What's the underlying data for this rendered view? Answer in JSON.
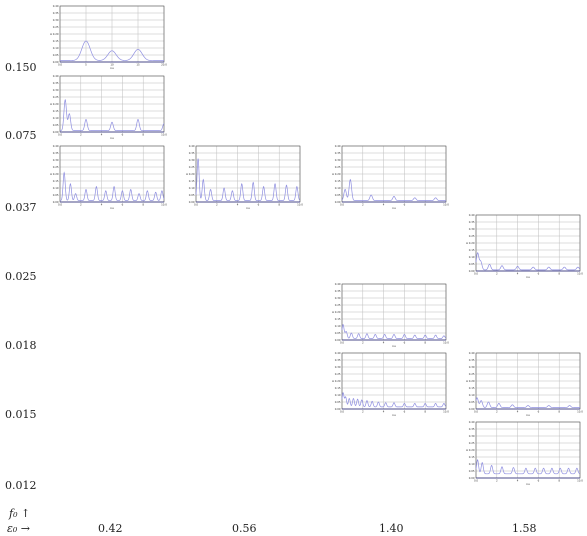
{
  "axes": {
    "y_axis_label": "f₀ ↑",
    "x_axis_label": "ε₀ →",
    "row_labels": [
      "0.150",
      "0.075",
      "0.037",
      "0.025",
      "0.018",
      "0.015",
      "0.012"
    ],
    "col_labels": [
      "0.42",
      "0.56",
      "1.40",
      "1.58"
    ]
  },
  "chart_data": {
    "type": "line",
    "layout": "small-multiples grid",
    "line_color": "#8f8fe0",
    "panel_axes": {
      "x_label": "nu",
      "y_label": "A",
      "ylim": [
        0,
        0.4
      ],
      "y_ticks": [
        "0.00",
        "0.05",
        "0.10",
        "0.15",
        "0.20",
        "0.25",
        "0.30",
        "0.35",
        "0.40"
      ]
    },
    "panels": [
      {
        "row": 0,
        "col": 0,
        "f0": "0.150",
        "eps0": "0.42",
        "xlim": [
          0,
          20
        ],
        "x_ticks": [
          "0.0",
          "5",
          "10",
          "15",
          "20.0"
        ],
        "peaks": [
          [
            5,
            0.14
          ],
          [
            10,
            0.07
          ],
          [
            15,
            0.08
          ]
        ],
        "width": 0.4,
        "base": 0.01
      },
      {
        "row": 1,
        "col": 0,
        "f0": "0.075",
        "eps0": "0.42",
        "xlim": [
          0,
          10
        ],
        "x_ticks": [
          "0.0",
          "2",
          "4",
          "6",
          "8",
          "10.0"
        ],
        "peaks": [
          [
            0.5,
            0.22
          ],
          [
            0.9,
            0.12
          ],
          [
            2.5,
            0.08
          ],
          [
            5,
            0.06
          ],
          [
            7.5,
            0.08
          ],
          [
            10,
            0.05
          ]
        ],
        "width": 0.12,
        "base": 0.01
      },
      {
        "row": 2,
        "col": 0,
        "f0": "0.037",
        "eps0": "0.42",
        "xlim": [
          0,
          10
        ],
        "x_ticks": [
          "0.0",
          "2",
          "4",
          "6",
          "8",
          "10.0"
        ],
        "peaks": [
          [
            0.4,
            0.2
          ],
          [
            1,
            0.12
          ],
          [
            1.5,
            0.05
          ],
          [
            2.5,
            0.08
          ],
          [
            3.5,
            0.1
          ],
          [
            4.4,
            0.07
          ],
          [
            5.2,
            0.1
          ],
          [
            6,
            0.07
          ],
          [
            6.8,
            0.08
          ],
          [
            7.6,
            0.05
          ],
          [
            8.4,
            0.07
          ],
          [
            9.2,
            0.06
          ],
          [
            9.8,
            0.07
          ]
        ],
        "width": 0.1,
        "base": 0.01
      },
      {
        "row": 2,
        "col": 1,
        "f0": "0.037",
        "eps0": "0.56",
        "xlim": [
          0,
          10
        ],
        "x_ticks": [
          "0.0",
          "2",
          "4",
          "6",
          "8",
          "10.0"
        ],
        "peaks": [
          [
            0.2,
            0.3
          ],
          [
            0.7,
            0.15
          ],
          [
            1.4,
            0.08
          ],
          [
            2.7,
            0.09
          ],
          [
            3.5,
            0.07
          ],
          [
            4.4,
            0.12
          ],
          [
            5.5,
            0.13
          ],
          [
            6.5,
            0.1
          ],
          [
            7.6,
            0.12
          ],
          [
            8.7,
            0.11
          ],
          [
            9.7,
            0.1
          ]
        ],
        "width": 0.1,
        "base": 0.01
      },
      {
        "row": 2,
        "col": 2,
        "f0": "0.037",
        "eps0": "1.40",
        "xlim": [
          0,
          10
        ],
        "x_ticks": [
          "0.0",
          "2",
          "4",
          "6",
          "8",
          "10.0"
        ],
        "peaks": [
          [
            0.3,
            0.08
          ],
          [
            0.8,
            0.15
          ],
          [
            2.8,
            0.04
          ],
          [
            5,
            0.03
          ],
          [
            7,
            0.02
          ],
          [
            9,
            0.02
          ]
        ],
        "width": 0.12,
        "base": 0.01
      },
      {
        "row": 3,
        "col": 3,
        "f0": "0.025",
        "eps0": "1.58",
        "xlim": [
          0,
          10
        ],
        "x_ticks": [
          "0.0",
          "2",
          "4",
          "6",
          "8",
          "10.0"
        ],
        "peaks": [
          [
            0.15,
            0.12
          ],
          [
            0.45,
            0.06
          ],
          [
            1.3,
            0.04
          ],
          [
            2.5,
            0.03
          ],
          [
            4,
            0.025
          ],
          [
            5.5,
            0.02
          ],
          [
            7,
            0.02
          ],
          [
            8.5,
            0.02
          ],
          [
            9.8,
            0.02
          ]
        ],
        "width": 0.12,
        "base": 0.008
      },
      {
        "row": 4,
        "col": 2,
        "f0": "0.018",
        "eps0": "1.40",
        "xlim": [
          0,
          10
        ],
        "x_ticks": [
          "0.0",
          "2",
          "4",
          "6",
          "8",
          "10.0"
        ],
        "peaks": [
          [
            0.1,
            0.1
          ],
          [
            0.4,
            0.05
          ],
          [
            0.9,
            0.04
          ],
          [
            1.6,
            0.035
          ],
          [
            2.4,
            0.035
          ],
          [
            3.2,
            0.03
          ],
          [
            4.1,
            0.03
          ],
          [
            5,
            0.03
          ],
          [
            6,
            0.03
          ],
          [
            7,
            0.025
          ],
          [
            8,
            0.025
          ],
          [
            9,
            0.025
          ],
          [
            9.8,
            0.02
          ]
        ],
        "width": 0.1,
        "base": 0.01
      },
      {
        "row": 5,
        "col": 2,
        "f0": "0.015",
        "eps0": "1.40",
        "xlim": [
          0,
          10
        ],
        "x_ticks": [
          "0.0",
          "2",
          "4",
          "6",
          "8",
          "10.0"
        ],
        "peaks": [
          [
            0.1,
            0.1
          ],
          [
            0.35,
            0.07
          ],
          [
            0.7,
            0.06
          ],
          [
            1.1,
            0.06
          ],
          [
            1.5,
            0.055
          ],
          [
            1.9,
            0.05
          ],
          [
            2.4,
            0.045
          ],
          [
            2.9,
            0.04
          ],
          [
            3.5,
            0.035
          ],
          [
            4.2,
            0.03
          ],
          [
            5,
            0.03
          ],
          [
            6,
            0.025
          ],
          [
            7,
            0.025
          ],
          [
            8,
            0.025
          ],
          [
            9,
            0.025
          ],
          [
            9.8,
            0.025
          ]
        ],
        "width": 0.09,
        "base": 0.015
      },
      {
        "row": 5,
        "col": 3,
        "f0": "0.015",
        "eps0": "1.58",
        "xlim": [
          0,
          10
        ],
        "x_ticks": [
          "0.0",
          "2",
          "4",
          "6",
          "8",
          "10.0"
        ],
        "peaks": [
          [
            0.1,
            0.07
          ],
          [
            0.5,
            0.05
          ],
          [
            1.2,
            0.04
          ],
          [
            2.2,
            0.03
          ],
          [
            3.5,
            0.02
          ],
          [
            5,
            0.015
          ],
          [
            7,
            0.015
          ],
          [
            9,
            0.015
          ]
        ],
        "width": 0.12,
        "base": 0.01
      },
      {
        "row": 6,
        "col": 3,
        "f0": "0.012",
        "eps0": "1.58",
        "xlim": [
          0,
          10
        ],
        "x_ticks": [
          "0.0",
          "2",
          "4",
          "6",
          "8",
          "10.0"
        ],
        "peaks": [
          [
            0.15,
            0.1
          ],
          [
            0.6,
            0.08
          ],
          [
            1.5,
            0.06
          ],
          [
            2.5,
            0.05
          ],
          [
            3.6,
            0.045
          ],
          [
            4.8,
            0.04
          ],
          [
            5.7,
            0.04
          ],
          [
            6.5,
            0.04
          ],
          [
            7.3,
            0.04
          ],
          [
            8.1,
            0.04
          ],
          [
            8.9,
            0.04
          ],
          [
            9.7,
            0.04
          ]
        ],
        "width": 0.1,
        "base": 0.03
      }
    ]
  }
}
